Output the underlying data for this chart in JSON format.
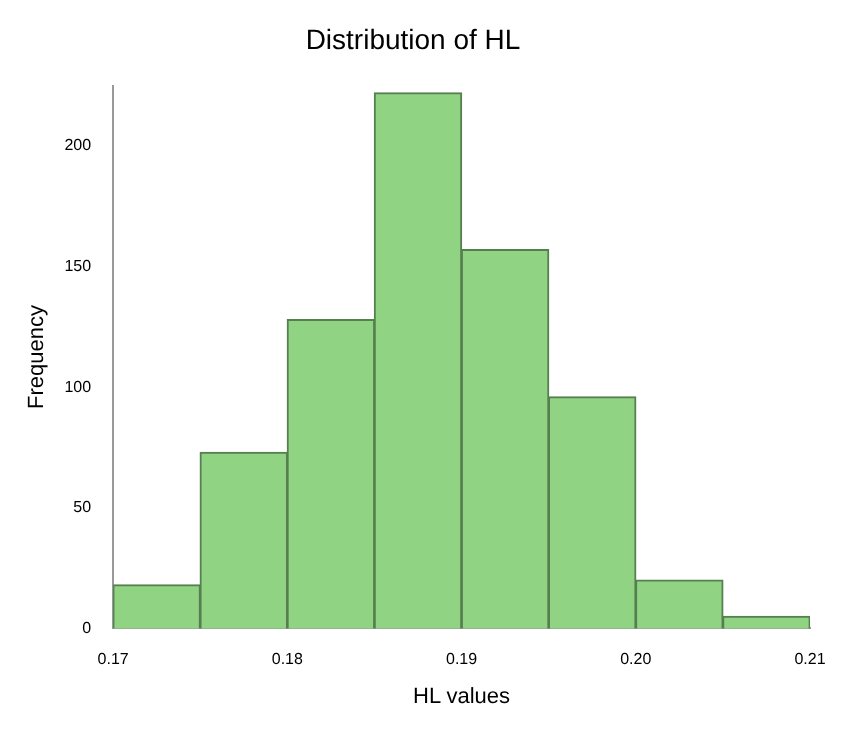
{
  "chart_data": {
    "type": "histogram",
    "title": "Distribution of HL",
    "xlabel": "HL values",
    "ylabel": "Frequency",
    "bins": [
      0.17,
      0.175,
      0.18,
      0.185,
      0.19,
      0.195,
      0.2,
      0.205,
      0.21
    ],
    "values": [
      18,
      73,
      128,
      222,
      157,
      96,
      20,
      5
    ],
    "color": "#90d383",
    "xlim": [
      0.17,
      0.21
    ],
    "xticks": [
      0.17,
      0.18,
      0.19,
      {
        "value": 0.2,
        "label": "0.20"
      },
      0.21
    ],
    "ylim": [
      0,
      225
    ],
    "yticks": [
      0,
      50,
      100,
      150,
      200
    ],
    "grid": false,
    "legend": false
  }
}
